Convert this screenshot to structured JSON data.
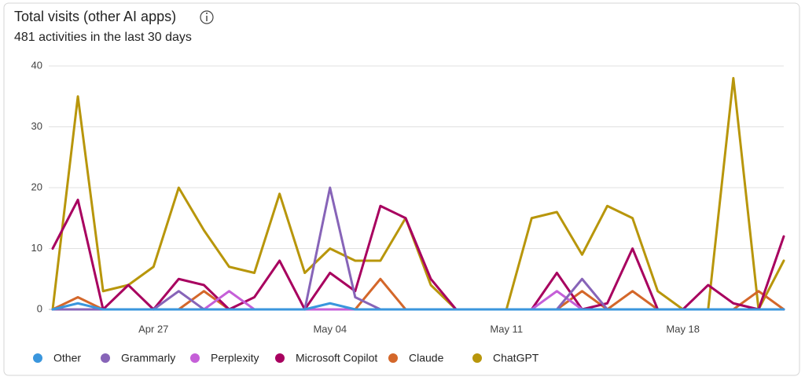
{
  "chart_data": {
    "type": "line",
    "title": "Total visits (other AI apps)",
    "subtitle": "481 activities in the last 30 days",
    "categories": [
      null,
      null,
      null,
      null,
      "Apr 27",
      null,
      null,
      null,
      null,
      null,
      null,
      "May 04",
      null,
      null,
      null,
      null,
      null,
      null,
      "May 11",
      null,
      null,
      null,
      null,
      null,
      null,
      "May 18",
      null,
      null,
      null,
      null
    ],
    "ylim": [
      0,
      40
    ],
    "yticks": [
      0,
      10,
      20,
      30,
      40
    ],
    "grid": true,
    "legend": "bottom",
    "series": [
      {
        "name": "Other",
        "color": "#3a96dd",
        "values": [
          0,
          1,
          0,
          0,
          0,
          0,
          0,
          0,
          0,
          0,
          0,
          1,
          0,
          0,
          0,
          0,
          0,
          0,
          0,
          0,
          0,
          0,
          0,
          0,
          0,
          0,
          0,
          0,
          0,
          0
        ]
      },
      {
        "name": "Grammarly",
        "color": "#8764b8",
        "values": [
          0,
          0,
          0,
          0,
          0,
          3,
          0,
          0,
          0,
          0,
          0,
          20,
          2,
          0,
          0,
          0,
          0,
          0,
          0,
          0,
          0,
          5,
          0,
          0,
          0,
          0,
          0,
          0,
          0,
          0
        ]
      },
      {
        "name": "Perplexity",
        "color": "#c55fd8",
        "values": [
          0,
          0,
          0,
          0,
          0,
          0,
          0,
          3,
          0,
          0,
          0,
          0,
          0,
          0,
          0,
          0,
          0,
          0,
          0,
          0,
          3,
          0,
          0,
          0,
          0,
          0,
          0,
          0,
          0,
          0
        ]
      },
      {
        "name": "Microsoft Copilot",
        "color": "#a8005f",
        "values": [
          10,
          18,
          0,
          4,
          0,
          5,
          4,
          0,
          2,
          8,
          0,
          6,
          3,
          17,
          15,
          5,
          0,
          0,
          0,
          0,
          6,
          0,
          1,
          10,
          0,
          0,
          4,
          1,
          0,
          12
        ]
      },
      {
        "name": "Claude",
        "color": "#d4672a",
        "values": [
          0,
          2,
          0,
          0,
          0,
          0,
          3,
          0,
          0,
          0,
          0,
          0,
          0,
          5,
          0,
          0,
          0,
          0,
          0,
          0,
          0,
          3,
          0,
          3,
          0,
          0,
          0,
          0,
          3,
          0
        ]
      },
      {
        "name": "ChatGPT",
        "color": "#b8960b",
        "values": [
          0,
          35,
          3,
          4,
          7,
          20,
          13,
          7,
          6,
          19,
          6,
          10,
          8,
          8,
          15,
          4,
          0,
          0,
          0,
          15,
          16,
          9,
          17,
          15,
          3,
          0,
          0,
          38,
          0,
          8
        ]
      }
    ]
  }
}
